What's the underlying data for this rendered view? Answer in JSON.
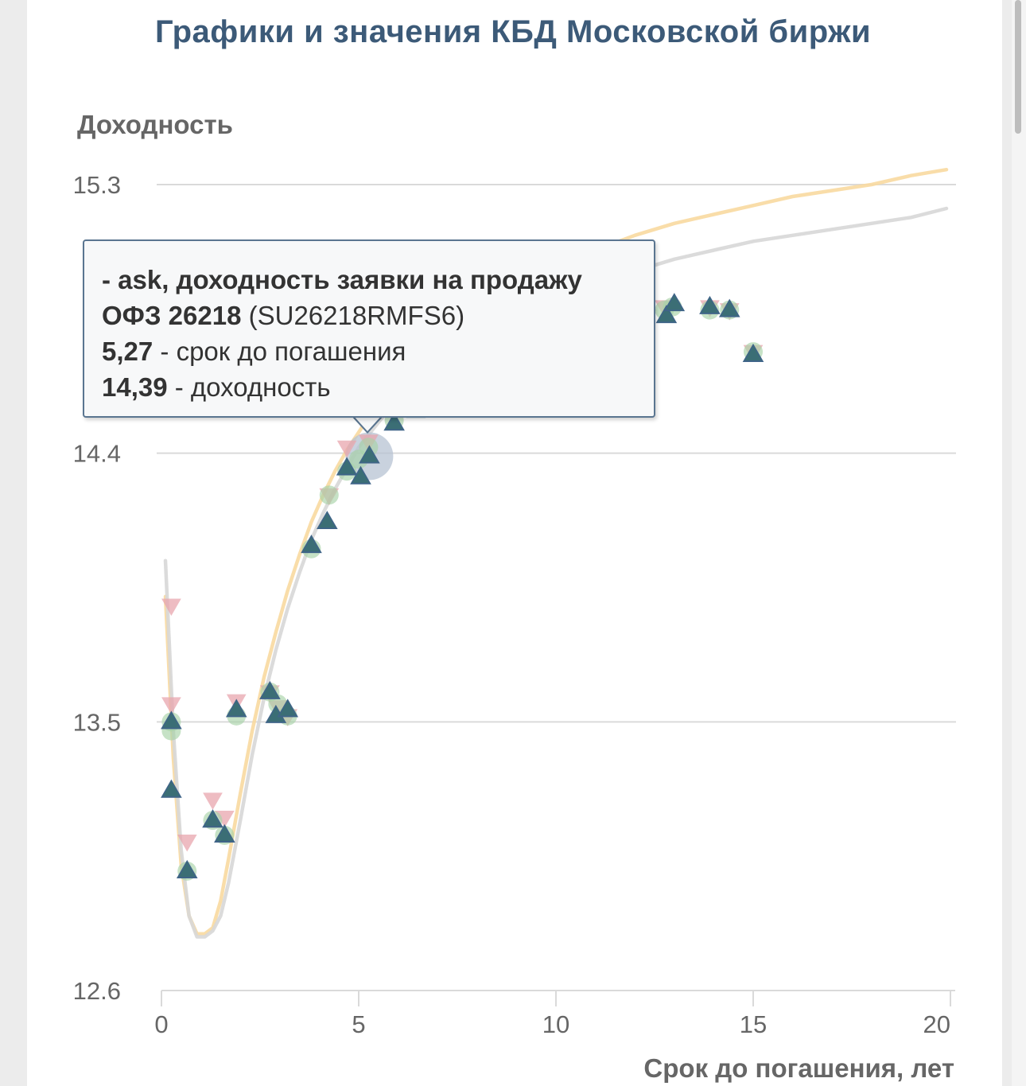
{
  "title": "Графики и значения КБД Московской биржи",
  "chart_data": {
    "type": "scatter",
    "title": "Графики и значения КБД Московской биржи",
    "ylabel": "Доходность",
    "xlabel": "Срок до погашения, лет",
    "xlim": [
      0,
      20
    ],
    "ylim": [
      12.6,
      15.3
    ],
    "x_ticks": [
      "0",
      "5",
      "10",
      "15",
      "20"
    ],
    "y_ticks": [
      "12.6",
      "13.5",
      "14.4",
      "15.3"
    ],
    "grid": "horizontal",
    "colors": {
      "curve_orange": "#f8d9a0",
      "curve_gray": "#d7d7d7",
      "ask": "#3f6488",
      "bid": "#e8a6ad",
      "circle": "#a8d3a8",
      "overlay": "#3b7070",
      "faded": "#ccdede",
      "grid": "#dadada",
      "title": "#3c5a78"
    },
    "series": [
      {
        "id": "curve_orange",
        "kind": "line",
        "x": [
          0.1,
          0.3,
          0.5,
          0.7,
          0.9,
          1.1,
          1.3,
          1.5,
          1.7,
          2.0,
          2.3,
          2.6,
          2.9,
          3.2,
          3.5,
          3.8,
          4.1,
          4.4,
          4.7,
          5.0,
          5.3,
          5.6,
          6.0,
          6.5,
          7.0,
          7.5,
          8.0,
          8.5,
          9.0,
          10.0,
          11.0,
          12.0,
          13.0,
          14.0,
          15.0,
          16.0,
          17.0,
          18.0,
          19.0,
          19.9
        ],
        "y": [
          13.92,
          13.38,
          13.02,
          12.85,
          12.79,
          12.79,
          12.81,
          12.9,
          13.04,
          13.26,
          13.47,
          13.65,
          13.8,
          13.94,
          14.06,
          14.17,
          14.26,
          14.34,
          14.41,
          14.47,
          14.53,
          14.58,
          14.64,
          14.7,
          14.76,
          14.82,
          14.87,
          14.91,
          14.95,
          15.02,
          15.08,
          15.13,
          15.17,
          15.2,
          15.23,
          15.26,
          15.28,
          15.3,
          15.33,
          15.35
        ]
      },
      {
        "id": "curve_gray",
        "kind": "line",
        "x": [
          0.1,
          0.3,
          0.5,
          0.7,
          0.9,
          1.1,
          1.3,
          1.5,
          1.7,
          2.0,
          2.3,
          2.6,
          2.9,
          3.2,
          3.5,
          3.8,
          4.1,
          4.4,
          4.7,
          5.0,
          5.3,
          5.6,
          6.0,
          6.5,
          7.0,
          7.5,
          8.0,
          8.5,
          9.0,
          10.0,
          11.0,
          12.0,
          13.0,
          14.0,
          15.0,
          16.0,
          17.0,
          18.0,
          19.0,
          19.9
        ],
        "y": [
          14.04,
          13.47,
          13.07,
          12.85,
          12.78,
          12.78,
          12.8,
          12.85,
          12.96,
          13.17,
          13.39,
          13.58,
          13.74,
          13.88,
          14.0,
          14.11,
          14.2,
          14.28,
          14.35,
          14.42,
          14.47,
          14.52,
          14.58,
          14.64,
          14.7,
          14.76,
          14.8,
          14.84,
          14.87,
          14.92,
          14.97,
          15.01,
          15.05,
          15.08,
          15.11,
          15.13,
          15.15,
          15.17,
          15.19,
          15.22
        ]
      },
      {
        "id": "bid",
        "kind": "scatter",
        "marker": "triangle-down",
        "x": [
          0.25,
          0.25,
          0.65,
          1.3,
          1.6,
          1.9,
          2.75,
          2.95,
          3.2,
          4.25,
          4.7,
          5.25,
          5.9,
          12.75,
          13.9,
          14.4,
          15.0
        ],
        "y": [
          13.89,
          13.56,
          13.1,
          13.24,
          13.18,
          13.57,
          13.6,
          13.55,
          13.52,
          14.26,
          14.42,
          14.44,
          14.53,
          14.89,
          14.89,
          14.88,
          14.74
        ]
      },
      {
        "id": "circle",
        "kind": "scatter",
        "marker": "circle",
        "x": [
          0.25,
          0.25,
          0.65,
          1.3,
          1.6,
          1.9,
          2.75,
          2.95,
          3.2,
          3.8,
          4.25,
          4.7,
          5.0,
          5.25,
          5.9,
          12.75,
          12.95,
          13.9,
          14.4,
          15.0
        ],
        "y": [
          13.47,
          13.5,
          13.0,
          13.17,
          13.12,
          13.52,
          13.6,
          13.56,
          13.52,
          14.08,
          14.26,
          14.34,
          14.38,
          14.42,
          14.51,
          14.88,
          14.89,
          14.88,
          14.88,
          14.74
        ]
      },
      {
        "id": "ask",
        "kind": "scatter",
        "marker": "triangle-up",
        "x": [
          0.25,
          0.25,
          0.65,
          1.3,
          1.6,
          1.9,
          2.75,
          2.9,
          3.2,
          3.8,
          4.2,
          4.7,
          5.05,
          5.27,
          5.9,
          12.8,
          13.0,
          13.9,
          14.4,
          15.0
        ],
        "y": [
          13.5,
          13.27,
          13.0,
          13.17,
          13.12,
          13.54,
          13.6,
          13.52,
          13.54,
          14.09,
          14.17,
          14.35,
          14.32,
          14.39,
          14.5,
          14.86,
          14.9,
          14.89,
          14.88,
          14.73
        ]
      },
      {
        "id": "faded",
        "kind": "scatter",
        "marker": "triangle-up",
        "x": [
          6.45,
          6.8,
          7.3,
          7.85,
          9.1,
          9.25,
          9.65,
          10.05,
          11.0,
          11.85,
          12.3
        ],
        "y": [
          14.54,
          14.63,
          14.77,
          14.8,
          14.71,
          14.91,
          14.9,
          14.86,
          14.91,
          14.89,
          14.9
        ]
      }
    ],
    "highlight": {
      "x": 5.27,
      "y": 14.39
    }
  },
  "tooltip": {
    "series_name": "- ask, доходность заявки на продажу",
    "bond_name": "ОФЗ 26218",
    "bond_code": "(SU26218RMFS6)",
    "maturity_value": "5,27",
    "maturity_label": "- срок до погашения",
    "yield_value": "14,39",
    "yield_label": "- доходность"
  }
}
